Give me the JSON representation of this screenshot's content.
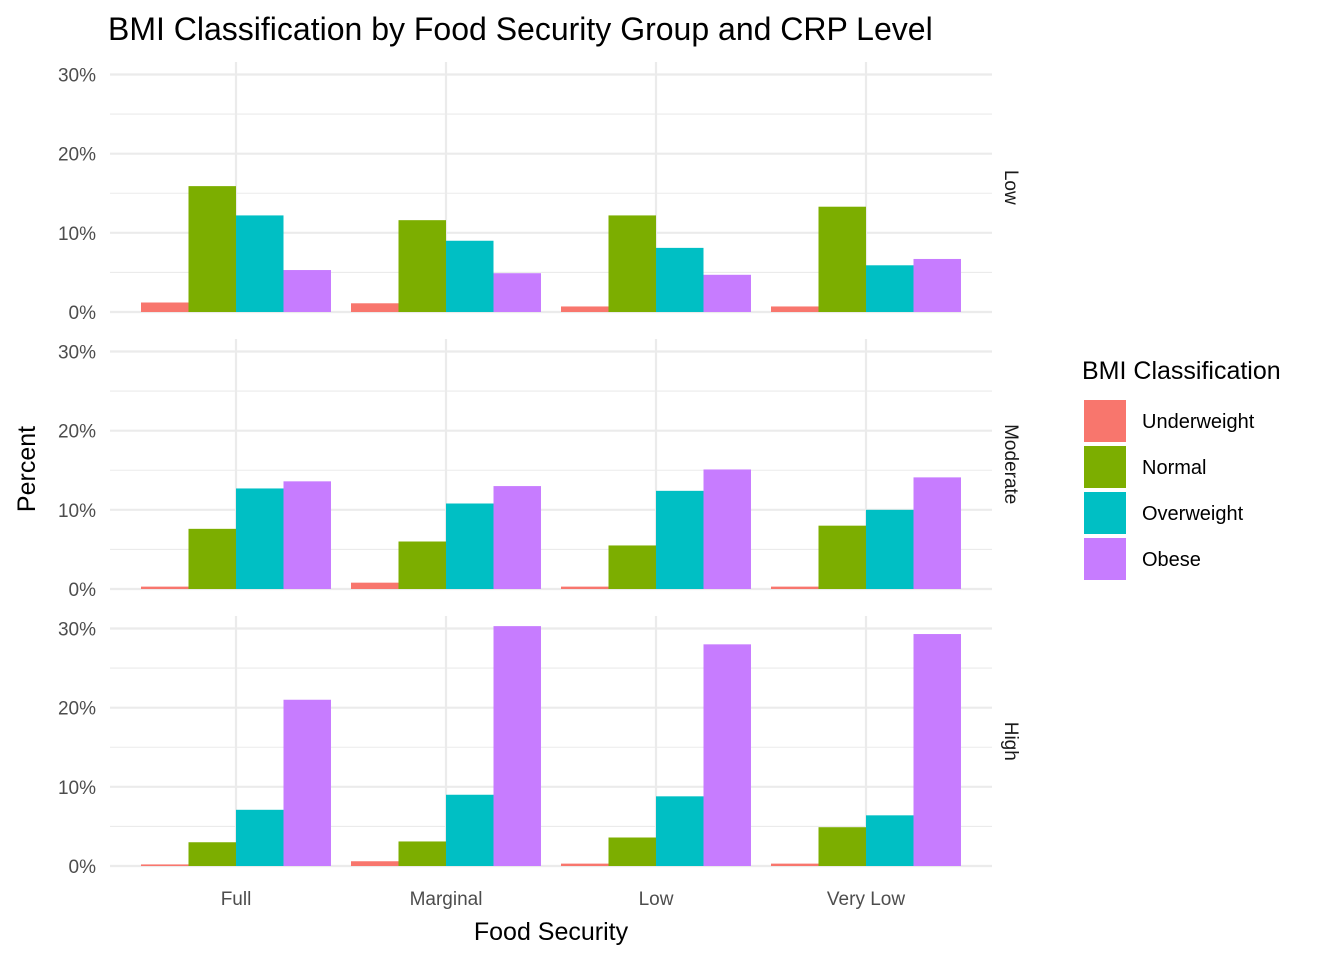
{
  "chart_data": {
    "type": "bar",
    "title": "BMI Classification by Food Security Group and CRP Level",
    "xlabel": "Food Security",
    "ylabel": "Percent",
    "categories": [
      "Full",
      "Marginal",
      "Low",
      "Very Low"
    ],
    "ylim": [
      0,
      0.3
    ],
    "yticks": [
      "0%",
      "10%",
      "20%",
      "30%"
    ],
    "grid": true,
    "legend": {
      "title": "BMI Classification",
      "position": "right",
      "entries": [
        "Underweight",
        "Normal",
        "Overweight",
        "Obese"
      ]
    },
    "colors": {
      "Underweight": "#F8766D",
      "Normal": "#7CAE00",
      "Overweight": "#00BFC4",
      "Obese": "#C77CFF"
    },
    "facets": [
      {
        "label": "Low",
        "series": [
          {
            "name": "Underweight",
            "values": [
              0.012,
              0.011,
              0.007,
              0.007
            ]
          },
          {
            "name": "Normal",
            "values": [
              0.159,
              0.116,
              0.122,
              0.133
            ]
          },
          {
            "name": "Overweight",
            "values": [
              0.122,
              0.09,
              0.081,
              0.059
            ]
          },
          {
            "name": "Obese",
            "values": [
              0.053,
              0.049,
              0.047,
              0.067
            ]
          }
        ]
      },
      {
        "label": "Moderate",
        "series": [
          {
            "name": "Underweight",
            "values": [
              0.003,
              0.008,
              0.003,
              0.003
            ]
          },
          {
            "name": "Normal",
            "values": [
              0.076,
              0.06,
              0.055,
              0.08
            ]
          },
          {
            "name": "Overweight",
            "values": [
              0.127,
              0.108,
              0.124,
              0.1
            ]
          },
          {
            "name": "Obese",
            "values": [
              0.136,
              0.13,
              0.151,
              0.141
            ]
          }
        ]
      },
      {
        "label": "High",
        "series": [
          {
            "name": "Underweight",
            "values": [
              0.002,
              0.006,
              0.003,
              0.003
            ]
          },
          {
            "name": "Normal",
            "values": [
              0.03,
              0.031,
              0.036,
              0.049
            ]
          },
          {
            "name": "Overweight",
            "values": [
              0.071,
              0.09,
              0.088,
              0.064
            ]
          },
          {
            "name": "Obese",
            "values": [
              0.21,
              0.303,
              0.28,
              0.293
            ]
          }
        ]
      }
    ]
  }
}
